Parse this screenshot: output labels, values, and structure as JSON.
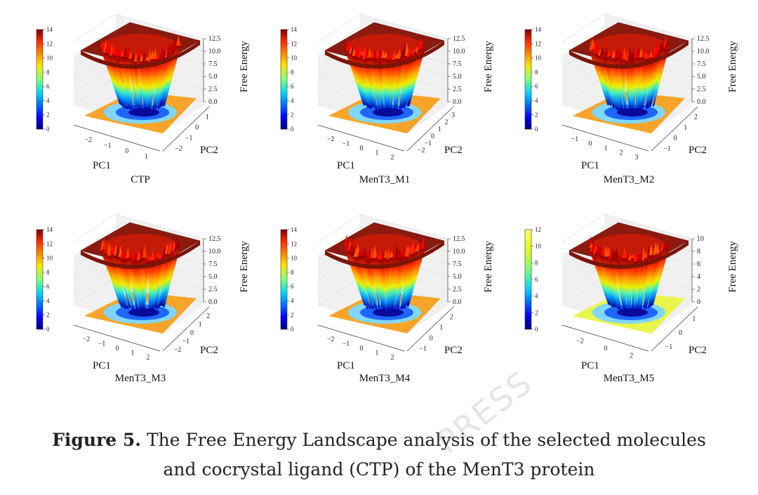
{
  "chart_data": [
    {
      "type": "surface3d",
      "title": "CTP",
      "xlabel": "PC1",
      "ylabel": "PC2",
      "zlabel": "Free Energy",
      "x_ticks": [
        "−2",
        "−1",
        "0",
        "1"
      ],
      "y_ticks": [
        "−2",
        "−1",
        "0",
        "1"
      ],
      "z_ticks": [
        "0.0",
        "2.5",
        "5.0",
        "7.5",
        "10.0",
        "12.5"
      ],
      "colorbar": {
        "min": 0,
        "max": 14,
        "ticks": [
          "0",
          "2",
          "4",
          "6",
          "8",
          "10",
          "12",
          "14"
        ]
      }
    },
    {
      "type": "surface3d",
      "title": "MenT3_M1",
      "xlabel": "PC1",
      "ylabel": "PC2",
      "zlabel": "Free Energy",
      "x_ticks": [
        "−2",
        "−1",
        "0",
        "1",
        "2"
      ],
      "y_ticks": [
        "−2",
        "−1",
        "0",
        "1",
        "2",
        "3"
      ],
      "z_ticks": [
        "0.0",
        "2.5",
        "5.0",
        "7.5",
        "10.0",
        "12.5"
      ],
      "colorbar": {
        "min": 0,
        "max": 14,
        "ticks": [
          "0",
          "2",
          "4",
          "6",
          "8",
          "10",
          "12",
          "14"
        ]
      }
    },
    {
      "type": "surface3d",
      "title": "MenT3_M2",
      "xlabel": "PC1",
      "ylabel": "PC2",
      "zlabel": "Free Energy",
      "x_ticks": [
        "−1",
        "0",
        "1",
        "2",
        "3"
      ],
      "y_ticks": [
        "−1",
        "0",
        "1",
        "2"
      ],
      "z_ticks": [
        "0.0",
        "2.5",
        "5.0",
        "7.5",
        "10.0",
        "12.5"
      ],
      "colorbar": {
        "min": 0,
        "max": 14,
        "ticks": [
          "0",
          "2",
          "4",
          "6",
          "8",
          "10",
          "12",
          "14"
        ]
      }
    },
    {
      "type": "surface3d",
      "title": "MenT3_M3",
      "xlabel": "PC1",
      "ylabel": "PC2",
      "zlabel": "Free Energy",
      "x_ticks": [
        "−2",
        "−1",
        "0",
        "1",
        "2"
      ],
      "y_ticks": [
        "−2",
        "−1",
        "0",
        "1",
        "2"
      ],
      "z_ticks": [
        "0.0",
        "2.5",
        "5.0",
        "7.5",
        "10.0",
        "12.5"
      ],
      "colorbar": {
        "min": 0,
        "max": 14,
        "ticks": [
          "0",
          "2",
          "4",
          "6",
          "8",
          "10",
          "12",
          "14"
        ]
      }
    },
    {
      "type": "surface3d",
      "title": "MenT3_M4",
      "xlabel": "PC1",
      "ylabel": "PC2",
      "zlabel": "Free Energy",
      "x_ticks": [
        "−2",
        "−1",
        "0",
        "1",
        "2"
      ],
      "y_ticks": [
        "−1",
        "0",
        "1",
        "2"
      ],
      "z_ticks": [
        "0.0",
        "2.5",
        "5.0",
        "7.5",
        "10.0",
        "12.5"
      ],
      "colorbar": {
        "min": 0,
        "max": 14,
        "ticks": [
          "0",
          "2",
          "4",
          "6",
          "8",
          "10",
          "12",
          "14"
        ]
      }
    },
    {
      "type": "surface3d",
      "title": "MenT3_M5",
      "xlabel": "PC1",
      "ylabel": "PC2",
      "zlabel": "Free Energy",
      "x_ticks": [
        "−2",
        "0",
        "2"
      ],
      "y_ticks": [
        "−1",
        "0",
        "1"
      ],
      "z_ticks": [
        "0",
        "2",
        "4",
        "6",
        "8",
        "10"
      ],
      "colorbar": {
        "min": 0,
        "max": 12,
        "ticks": [
          "0",
          "2",
          "4",
          "6",
          "8",
          "10",
          "12"
        ]
      }
    }
  ],
  "caption": {
    "label": "Figure 5.",
    "line1": "The Free Energy Landscape analysis of the selected molecules",
    "line2": "and cocrystal ligand (CTP) of the MenT3 protein"
  },
  "watermark": "PRESS"
}
